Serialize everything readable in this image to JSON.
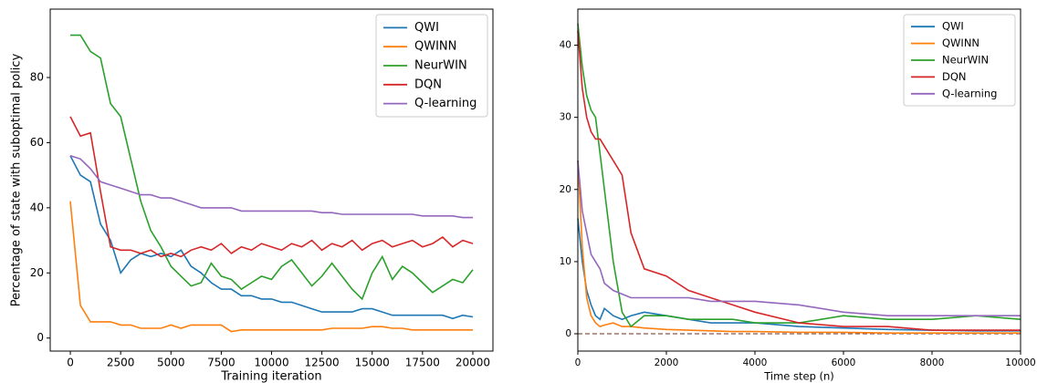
{
  "chart_data": [
    {
      "type": "line",
      "x_label": "Training iteration",
      "y_label": "Percentage of state with suboptimal policy",
      "x": [
        0,
        500,
        1000,
        1500,
        2000,
        2500,
        3000,
        3500,
        4000,
        4500,
        5000,
        5500,
        6000,
        6500,
        7000,
        7500,
        8000,
        8500,
        9000,
        9500,
        10000,
        10500,
        11000,
        11500,
        12000,
        12500,
        13000,
        13500,
        14000,
        14500,
        15000,
        15500,
        16000,
        16500,
        17000,
        17500,
        18000,
        18500,
        19000,
        19500,
        20000
      ],
      "xlim": [
        -1000,
        21000
      ],
      "xticks": [
        0,
        2500,
        5000,
        7500,
        10000,
        12500,
        15000,
        17500,
        20000
      ],
      "ylim": [
        -4,
        101
      ],
      "yticks": [
        0,
        20,
        40,
        60,
        80
      ],
      "legend": "upper right",
      "series": [
        {
          "name": "QWI",
          "color": "#1f77b4",
          "values": [
            56,
            50,
            48,
            35,
            30,
            20,
            24,
            26,
            25,
            26,
            25,
            27,
            22,
            20,
            17,
            15,
            15,
            13,
            13,
            12,
            12,
            11,
            11,
            10,
            9,
            8,
            8,
            8,
            8,
            9,
            9,
            8,
            7,
            7,
            7,
            7,
            7,
            7,
            6,
            7,
            6.5
          ]
        },
        {
          "name": "QWINN",
          "color": "#ff7f0e",
          "values": [
            42,
            10,
            5,
            5,
            5,
            4,
            4,
            3,
            3,
            3,
            4,
            3,
            4,
            4,
            4,
            4,
            2,
            2.5,
            2.5,
            2.5,
            2.5,
            2.5,
            2.5,
            2.5,
            2.5,
            2.5,
            3,
            3,
            3,
            3,
            3.5,
            3.5,
            3,
            3,
            2.5,
            2.5,
            2.5,
            2.5,
            2.5,
            2.5,
            2.5
          ]
        },
        {
          "name": "NeurWIN",
          "color": "#2ca02c",
          "values": [
            93,
            93,
            88,
            86,
            72,
            68,
            55,
            42,
            33,
            28,
            22,
            19,
            16,
            17,
            23,
            19,
            18,
            15,
            17,
            19,
            18,
            22,
            24,
            20,
            16,
            19,
            23,
            19,
            15,
            12,
            20,
            25,
            18,
            22,
            20,
            17,
            14,
            16,
            18,
            17,
            21
          ]
        },
        {
          "name": "DQN",
          "color": "#d62728",
          "values": [
            68,
            62,
            63,
            45,
            28,
            27,
            27,
            26,
            27,
            25,
            26,
            25,
            27,
            28,
            27,
            29,
            26,
            28,
            27,
            29,
            28,
            27,
            29,
            28,
            30,
            27,
            29,
            28,
            30,
            27,
            29,
            30,
            28,
            29,
            30,
            28,
            29,
            31,
            28,
            30,
            29
          ]
        },
        {
          "name": "Q-learning",
          "color": "#9467bd",
          "values": [
            56,
            55,
            52,
            48,
            47,
            46,
            45,
            44,
            44,
            43,
            43,
            42,
            41,
            40,
            40,
            40,
            40,
            39,
            39,
            39,
            39,
            39,
            39,
            39,
            39,
            38.5,
            38.5,
            38,
            38,
            38,
            38,
            38,
            38,
            38,
            38,
            37.5,
            37.5,
            37.5,
            37.5,
            37,
            37
          ]
        }
      ]
    },
    {
      "type": "line",
      "x_label": "Time step (n)",
      "x": [
        0,
        100,
        200,
        300,
        400,
        500,
        600,
        800,
        1000,
        1200,
        1500,
        2000,
        2500,
        3000,
        3500,
        4000,
        5000,
        6000,
        7000,
        8000,
        9000,
        10000
      ],
      "xlim": [
        0,
        10000
      ],
      "xticks": [
        0,
        2000,
        4000,
        6000,
        8000,
        10000
      ],
      "ylim": [
        -2.4,
        45
      ],
      "yticks": [
        0,
        10,
        20,
        30,
        40
      ],
      "legend": "upper right",
      "reference_line": 0,
      "series": [
        {
          "name": "QWI",
          "color": "#1f77b4",
          "values": [
            16,
            10,
            6,
            4,
            2.5,
            2,
            3.5,
            2.5,
            2,
            2.5,
            3,
            2.5,
            2,
            1.5,
            1.5,
            1.5,
            1,
            0.8,
            0.6,
            0.5,
            0.4,
            0.4
          ]
        },
        {
          "name": "QWINN",
          "color": "#ff7f0e",
          "values": [
            24,
            12,
            5,
            2.5,
            1.5,
            1,
            1.2,
            1.5,
            1,
            1,
            0.8,
            0.6,
            0.5,
            0.4,
            0.3,
            0.3,
            0.2,
            0.2,
            0.1,
            0.1,
            0.1,
            0.1
          ]
        },
        {
          "name": "NeurWIN",
          "color": "#2ca02c",
          "values": [
            43,
            37,
            33,
            31,
            30,
            25,
            20,
            10,
            3,
            1,
            2.5,
            2.5,
            2,
            2,
            2,
            1.5,
            1.5,
            2.5,
            2,
            2,
            2.5,
            2
          ]
        },
        {
          "name": "DQN",
          "color": "#d62728",
          "values": [
            42,
            34,
            30,
            28,
            27,
            27,
            26,
            24,
            22,
            14,
            9,
            8,
            6,
            5,
            4,
            3,
            1.5,
            1,
            1,
            0.5,
            0.5,
            0.5
          ]
        },
        {
          "name": "Q-learning",
          "color": "#9467bd",
          "values": [
            24,
            17,
            14,
            11,
            10,
            9,
            7,
            6,
            5.5,
            5,
            5,
            5,
            5,
            4.5,
            4.5,
            4.5,
            4,
            3,
            2.5,
            2.5,
            2.5,
            2.5
          ]
        }
      ]
    }
  ]
}
